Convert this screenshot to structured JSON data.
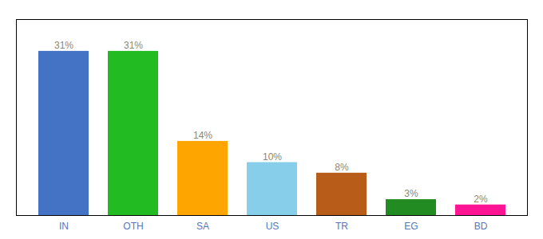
{
  "chart_data": {
    "type": "bar",
    "categories": [
      "IN",
      "OTH",
      "SA",
      "US",
      "TR",
      "EG",
      "BD"
    ],
    "values": [
      31,
      31,
      14,
      10,
      8,
      3,
      2
    ],
    "value_labels": [
      "31%",
      "31%",
      "14%",
      "10%",
      "8%",
      "3%",
      "2%"
    ],
    "colors": [
      "#4472C4",
      "#22BB22",
      "#FFA500",
      "#87CEEB",
      "#B85C1A",
      "#228B22",
      "#FF1493"
    ],
    "ylim": [
      0,
      37
    ],
    "data_labels": true,
    "tick_labels": "x",
    "grid": false
  }
}
